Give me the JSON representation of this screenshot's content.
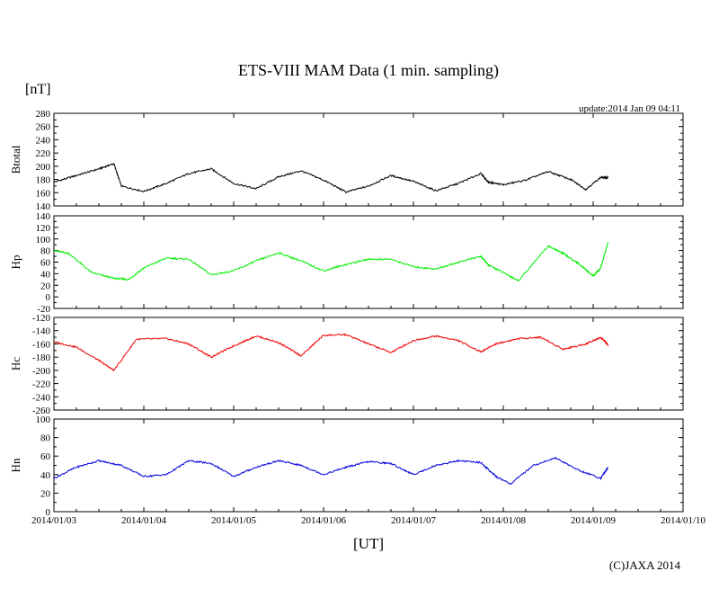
{
  "title": "ETS-VIII MAM Data (1 min. sampling)",
  "y_unit": "[nT]",
  "x_unit": "[UT]",
  "update": "update:2014 Jan 09 04:11",
  "copyright": "(C)JAXA 2014",
  "chart_data": [
    {
      "type": "line",
      "panel": "Btotal",
      "ylabel": "Btotal",
      "color": "#000000",
      "ylim": [
        140,
        280
      ],
      "yticks": [
        140,
        160,
        180,
        200,
        220,
        240,
        260,
        280
      ],
      "xlim": [
        "2014/01/03 00:00",
        "2014/01/10 00:00"
      ],
      "x_ticks": [
        "2014/01/03",
        "2014/01/04",
        "2014/01/05",
        "2014/01/06",
        "2014/01/07",
        "2014/01/08",
        "2014/01/09",
        "2014/01/10"
      ],
      "grid": false,
      "x": [
        "2014/01/03 00:00",
        "2014/01/03 06:00",
        "2014/01/03 12:00",
        "2014/01/03 16:00",
        "2014/01/03 18:00",
        "2014/01/04 00:00",
        "2014/01/04 06:00",
        "2014/01/04 12:00",
        "2014/01/04 18:00",
        "2014/01/05 00:00",
        "2014/01/05 06:00",
        "2014/01/05 12:00",
        "2014/01/05 18:00",
        "2014/01/06 00:00",
        "2014/01/06 06:00",
        "2014/01/06 12:00",
        "2014/01/06 18:00",
        "2014/01/07 00:00",
        "2014/01/07 06:00",
        "2014/01/07 12:00",
        "2014/01/07 18:00",
        "2014/01/07 20:00",
        "2014/01/08 00:00",
        "2014/01/08 06:00",
        "2014/01/08 12:00",
        "2014/01/08 18:00",
        "2014/01/08 22:00",
        "2014/01/09 02:00",
        "2014/01/09 04:00"
      ],
      "values": [
        176,
        186,
        196,
        204,
        170,
        162,
        174,
        189,
        196,
        174,
        166,
        184,
        193,
        179,
        161,
        170,
        186,
        177,
        163,
        174,
        189,
        176,
        172,
        179,
        192,
        180,
        165,
        183,
        183
      ]
    },
    {
      "type": "line",
      "panel": "Hp",
      "ylabel": "Hp",
      "color": "#00ee00",
      "ylim": [
        -20,
        140
      ],
      "yticks": [
        -20,
        0,
        20,
        40,
        60,
        80,
        100,
        120,
        140
      ],
      "xlim": [
        "2014/01/03 00:00",
        "2014/01/10 00:00"
      ],
      "x_ticks": [
        "2014/01/03",
        "2014/01/04",
        "2014/01/05",
        "2014/01/06",
        "2014/01/07",
        "2014/01/08",
        "2014/01/09",
        "2014/01/10"
      ],
      "grid": false,
      "x": [
        "2014/01/03 00:00",
        "2014/01/03 04:00",
        "2014/01/03 10:00",
        "2014/01/03 16:00",
        "2014/01/03 20:00",
        "2014/01/04 00:00",
        "2014/01/04 06:00",
        "2014/01/04 12:00",
        "2014/01/04 18:00",
        "2014/01/05 00:00",
        "2014/01/05 06:00",
        "2014/01/05 12:00",
        "2014/01/05 18:00",
        "2014/01/06 00:00",
        "2014/01/06 06:00",
        "2014/01/06 12:00",
        "2014/01/06 18:00",
        "2014/01/07 00:00",
        "2014/01/07 06:00",
        "2014/01/07 12:00",
        "2014/01/07 18:00",
        "2014/01/07 20:00",
        "2014/01/08 00:00",
        "2014/01/08 04:00",
        "2014/01/08 12:00",
        "2014/01/08 16:00",
        "2014/01/08 20:00",
        "2014/01/09 00:00",
        "2014/01/09 02:00",
        "2014/01/09 04:00"
      ],
      "values": [
        80,
        75,
        42,
        32,
        30,
        50,
        67,
        65,
        38,
        45,
        62,
        76,
        62,
        45,
        56,
        65,
        65,
        52,
        48,
        60,
        70,
        55,
        42,
        28,
        88,
        75,
        58,
        36,
        50,
        95
      ]
    },
    {
      "type": "line",
      "panel": "Hc",
      "ylabel": "Hc",
      "color": "#ee0000",
      "ylim": [
        -260,
        -120
      ],
      "yticks": [
        -260,
        -240,
        -220,
        -200,
        -180,
        -160,
        -140,
        -120
      ],
      "xlim": [
        "2014/01/03 00:00",
        "2014/01/10 00:00"
      ],
      "x_ticks": [
        "2014/01/03",
        "2014/01/04",
        "2014/01/05",
        "2014/01/06",
        "2014/01/07",
        "2014/01/08",
        "2014/01/09",
        "2014/01/10"
      ],
      "grid": false,
      "x": [
        "2014/01/03 00:00",
        "2014/01/03 06:00",
        "2014/01/03 12:00",
        "2014/01/03 16:00",
        "2014/01/03 22:00",
        "2014/01/04 06:00",
        "2014/01/04 12:00",
        "2014/01/04 18:00",
        "2014/01/05 00:00",
        "2014/01/05 06:00",
        "2014/01/05 12:00",
        "2014/01/05 18:00",
        "2014/01/06 00:00",
        "2014/01/06 06:00",
        "2014/01/06 12:00",
        "2014/01/06 18:00",
        "2014/01/07 00:00",
        "2014/01/07 06:00",
        "2014/01/07 12:00",
        "2014/01/07 18:00",
        "2014/01/07 22:00",
        "2014/01/08 04:00",
        "2014/01/08 10:00",
        "2014/01/08 16:00",
        "2014/01/08 22:00",
        "2014/01/09 02:00",
        "2014/01/09 04:00"
      ],
      "values": [
        -157,
        -165,
        -185,
        -200,
        -153,
        -152,
        -160,
        -180,
        -163,
        -148,
        -158,
        -178,
        -147,
        -146,
        -160,
        -173,
        -155,
        -148,
        -155,
        -172,
        -160,
        -152,
        -150,
        -168,
        -160,
        -150,
        -162
      ]
    },
    {
      "type": "line",
      "panel": "Hn",
      "ylabel": "Hn",
      "color": "#0000dd",
      "ylim": [
        0,
        100
      ],
      "yticks": [
        0,
        20,
        40,
        60,
        80,
        100
      ],
      "xlim": [
        "2014/01/03 00:00",
        "2014/01/10 00:00"
      ],
      "x_ticks": [
        "2014/01/03",
        "2014/01/04",
        "2014/01/05",
        "2014/01/06",
        "2014/01/07",
        "2014/01/08",
        "2014/01/09",
        "2014/01/10"
      ],
      "grid": false,
      "x": [
        "2014/01/03 00:00",
        "2014/01/03 06:00",
        "2014/01/03 12:00",
        "2014/01/03 18:00",
        "2014/01/04 00:00",
        "2014/01/04 06:00",
        "2014/01/04 12:00",
        "2014/01/04 18:00",
        "2014/01/05 00:00",
        "2014/01/05 06:00",
        "2014/01/05 12:00",
        "2014/01/05 18:00",
        "2014/01/06 00:00",
        "2014/01/06 06:00",
        "2014/01/06 12:00",
        "2014/01/06 18:00",
        "2014/01/07 00:00",
        "2014/01/07 06:00",
        "2014/01/07 12:00",
        "2014/01/07 18:00",
        "2014/01/07 22:00",
        "2014/01/08 02:00",
        "2014/01/08 08:00",
        "2014/01/08 14:00",
        "2014/01/08 20:00",
        "2014/01/09 02:00",
        "2014/01/09 04:00"
      ],
      "values": [
        36,
        48,
        55,
        50,
        38,
        40,
        55,
        52,
        38,
        48,
        55,
        50,
        40,
        48,
        54,
        52,
        40,
        50,
        55,
        53,
        38,
        30,
        50,
        58,
        45,
        36,
        48
      ]
    }
  ]
}
